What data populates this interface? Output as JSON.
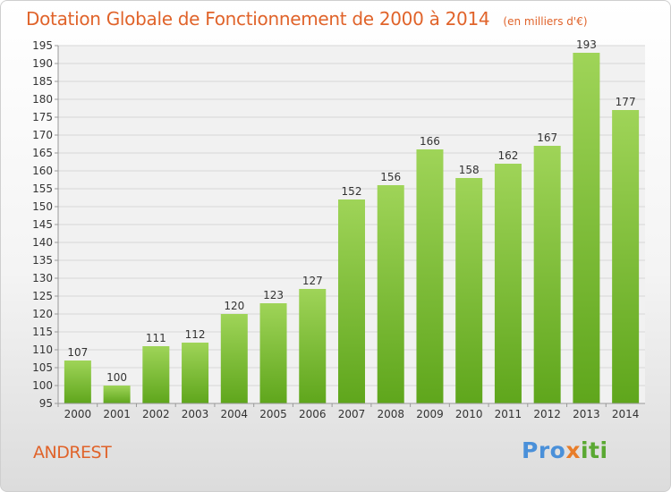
{
  "title": "Dotation Globale de Fonctionnement de 2000 à 2014",
  "unit_label": "(en milliers d'€)",
  "commune": "ANDREST",
  "logo": {
    "p1": "Pro",
    "p2": "x",
    "p3": "iti"
  },
  "colors": {
    "bar_light": "#9fd458",
    "bar_dark": "#5fa61c",
    "title": "#e0632a"
  },
  "chart_data": {
    "type": "bar",
    "categories": [
      "2000",
      "2001",
      "2002",
      "2003",
      "2004",
      "2005",
      "2006",
      "2007",
      "2008",
      "2009",
      "2010",
      "2011",
      "2012",
      "2013",
      "2014"
    ],
    "values": [
      107,
      100,
      111,
      112,
      120,
      123,
      127,
      152,
      156,
      166,
      158,
      162,
      167,
      193,
      177
    ],
    "ylim": [
      95,
      195
    ],
    "yticks": [
      95,
      100,
      105,
      110,
      115,
      120,
      125,
      130,
      135,
      140,
      145,
      150,
      155,
      160,
      165,
      170,
      175,
      180,
      185,
      190,
      195
    ],
    "grid": true,
    "title": "Dotation Globale de Fonctionnement de 2000 à 2014",
    "xlabel": "",
    "ylabel": ""
  }
}
